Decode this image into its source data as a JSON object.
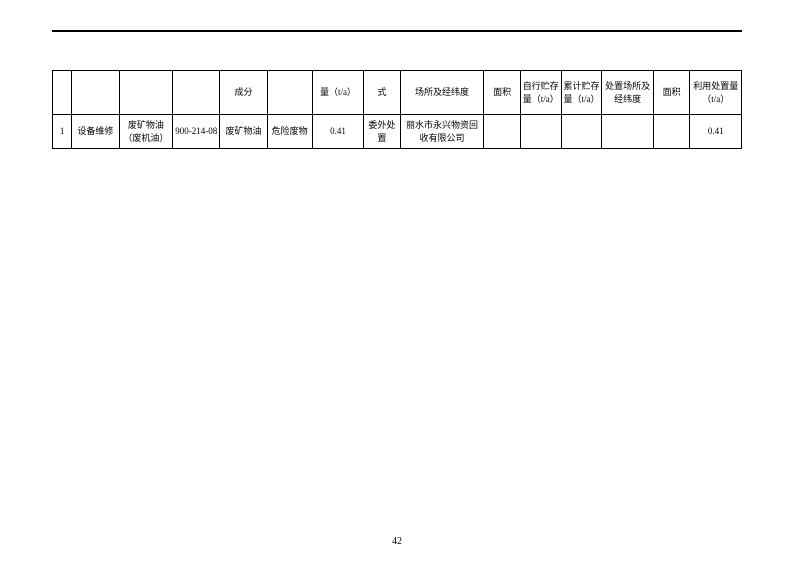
{
  "page_number": "42",
  "table": {
    "headers": [
      "",
      "",
      "",
      "",
      "成分",
      "",
      "量（t/a）",
      "式",
      "场所及经纬度",
      "面积",
      "自行贮存量（t/a）",
      "累计贮存量（t/a）",
      "处置场所及经纬度",
      "面积",
      "利用处置量（t/a）"
    ],
    "row": [
      "1",
      "设备维修",
      "废矿物油（废机油）",
      "900-214-08",
      "废矿物油",
      "危险废物",
      "0.41",
      "委外处置",
      "丽水市永兴物资回收有限公司",
      "",
      "",
      "",
      "",
      "",
      "0.41"
    ]
  }
}
